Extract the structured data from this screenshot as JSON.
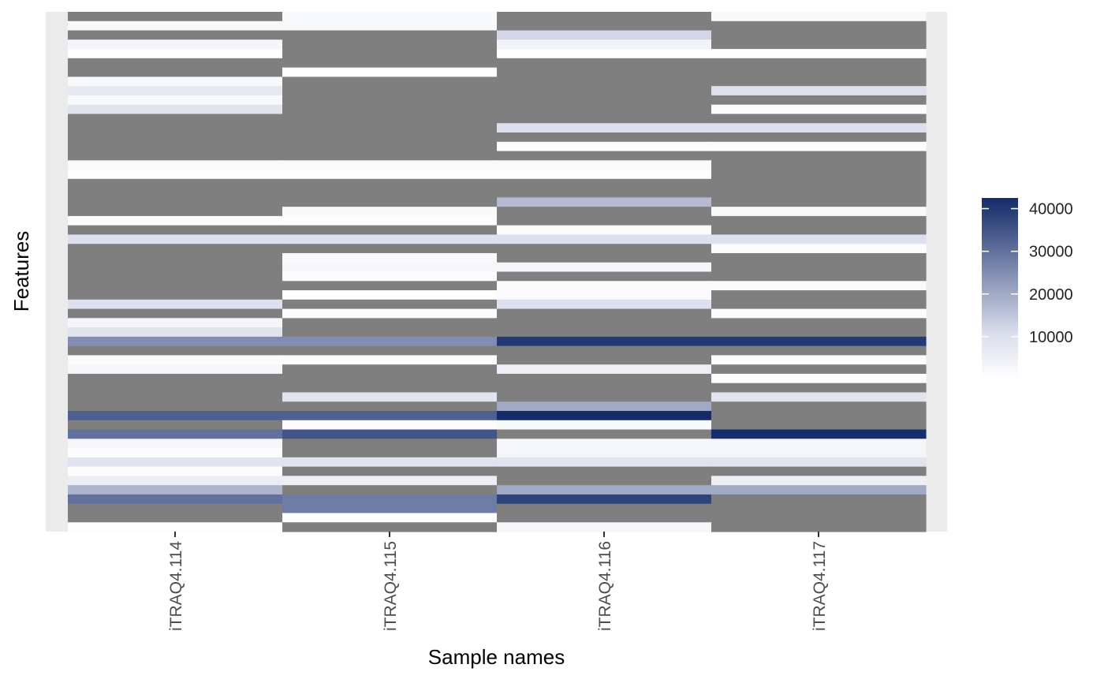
{
  "chart_data": {
    "type": "heatmap",
    "title": "",
    "xlabel": "Sample names",
    "ylabel": "Features",
    "categories": [
      "iTRAQ4.114",
      "iTRAQ4.115",
      "iTRAQ4.116",
      "iTRAQ4.117"
    ],
    "na_color": "#7f7f7f",
    "panel_background": "#ebebeb",
    "color_scale": {
      "low": "#ffffff",
      "high": "#132b69",
      "min": 0,
      "max": 42500,
      "breaks": [
        10000,
        20000,
        30000,
        40000
      ],
      "break_labels": [
        "10000",
        "20000",
        "30000",
        "40000"
      ]
    },
    "legend_position": "right",
    "grid": false,
    "values": [
      [
        null,
        2000,
        null,
        2000
      ],
      [
        2000,
        2000,
        null,
        null
      ],
      [
        null,
        null,
        12000,
        null
      ],
      [
        3000,
        null,
        4000,
        null
      ],
      [
        500,
        null,
        500,
        500
      ],
      [
        null,
        null,
        null,
        null
      ],
      [
        null,
        500,
        null,
        null
      ],
      [
        2000,
        null,
        null,
        null
      ],
      [
        7000,
        null,
        null,
        10000
      ],
      [
        2000,
        null,
        null,
        null
      ],
      [
        9000,
        null,
        null,
        1000
      ],
      [
        null,
        null,
        null,
        null
      ],
      [
        null,
        null,
        10000,
        10000
      ],
      [
        null,
        null,
        null,
        null
      ],
      [
        null,
        null,
        1000,
        1000
      ],
      [
        null,
        null,
        null,
        null
      ],
      [
        1500,
        1500,
        1500,
        null
      ],
      [
        500,
        500,
        500,
        null
      ],
      [
        null,
        null,
        null,
        null
      ],
      [
        null,
        null,
        null,
        null
      ],
      [
        null,
        null,
        17000,
        null
      ],
      [
        null,
        2000,
        null,
        2000
      ],
      [
        1000,
        1000,
        null,
        null
      ],
      [
        null,
        null,
        1000,
        null
      ],
      [
        10000,
        10000,
        10000,
        10000
      ],
      [
        null,
        null,
        null,
        1000
      ],
      [
        null,
        2000,
        null,
        null
      ],
      [
        null,
        3000,
        3000,
        null
      ],
      [
        null,
        1000,
        null,
        null
      ],
      [
        null,
        null,
        1500,
        1500
      ],
      [
        null,
        500,
        1500,
        null
      ],
      [
        10000,
        null,
        10000,
        null
      ],
      [
        null,
        1000,
        null,
        1000
      ],
      [
        3000,
        null,
        null,
        null
      ],
      [
        9000,
        null,
        null,
        null
      ],
      [
        25000,
        25000,
        40000,
        40000
      ],
      [
        null,
        null,
        null,
        null
      ],
      [
        1000,
        1000,
        null,
        1000
      ],
      [
        3000,
        null,
        5000,
        null
      ],
      [
        null,
        null,
        null,
        1000
      ],
      [
        null,
        null,
        null,
        null
      ],
      [
        null,
        9000,
        null,
        9000
      ],
      [
        null,
        null,
        20000,
        null
      ],
      [
        33000,
        33000,
        43000,
        null
      ],
      [
        null,
        1000,
        2000,
        null
      ],
      [
        30000,
        35000,
        null,
        42000
      ],
      [
        3000,
        null,
        3000,
        3000
      ],
      [
        1000,
        null,
        3000,
        3000
      ],
      [
        9000,
        9000,
        9000,
        9000
      ],
      [
        1000,
        null,
        null,
        null
      ],
      [
        6000,
        5000,
        null,
        5000
      ],
      [
        18000,
        null,
        20000,
        20000
      ],
      [
        30000,
        28000,
        38000,
        null
      ],
      [
        null,
        28000,
        null,
        null
      ],
      [
        null,
        500,
        null,
        null
      ],
      [
        500,
        null,
        3000,
        null
      ]
    ]
  }
}
